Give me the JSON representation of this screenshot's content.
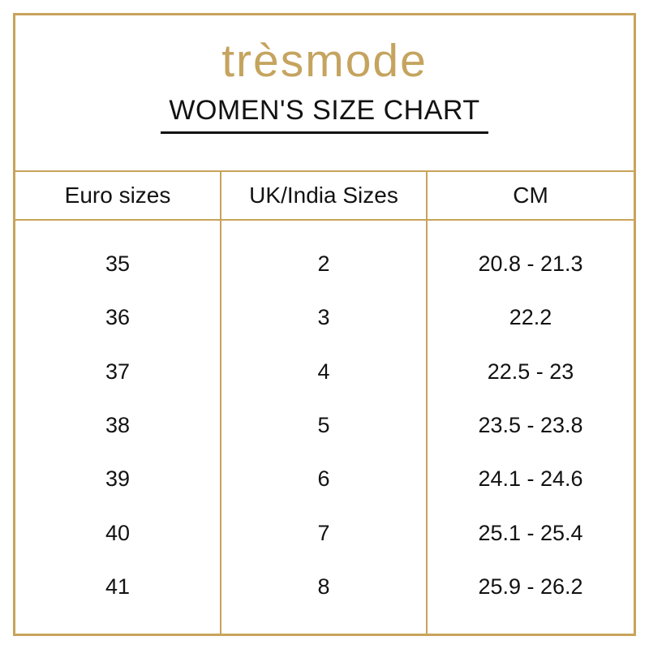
{
  "brand": {
    "logo_text": "trèsmode"
  },
  "header": {
    "title": "WOMEN'S SIZE CHART"
  },
  "colors": {
    "gold_lines": "#c8a35a",
    "logo_gold": "#c5a45f",
    "text": "#121212",
    "background": "#ffffff"
  },
  "chart_data": {
    "type": "table",
    "title": "WOMEN'S SIZE CHART",
    "columns": [
      "Euro sizes",
      "UK/India Sizes",
      "CM"
    ],
    "rows": [
      [
        "35",
        "2",
        "20.8 - 21.3"
      ],
      [
        "36",
        "3",
        "22.2"
      ],
      [
        "37",
        "4",
        "22.5 - 23"
      ],
      [
        "38",
        "5",
        "23.5 - 23.8"
      ],
      [
        "39",
        "6",
        "24.1 - 24.6"
      ],
      [
        "40",
        "7",
        "25.1 - 25.4"
      ],
      [
        "41",
        "8",
        "25.9 - 26.2"
      ]
    ]
  }
}
